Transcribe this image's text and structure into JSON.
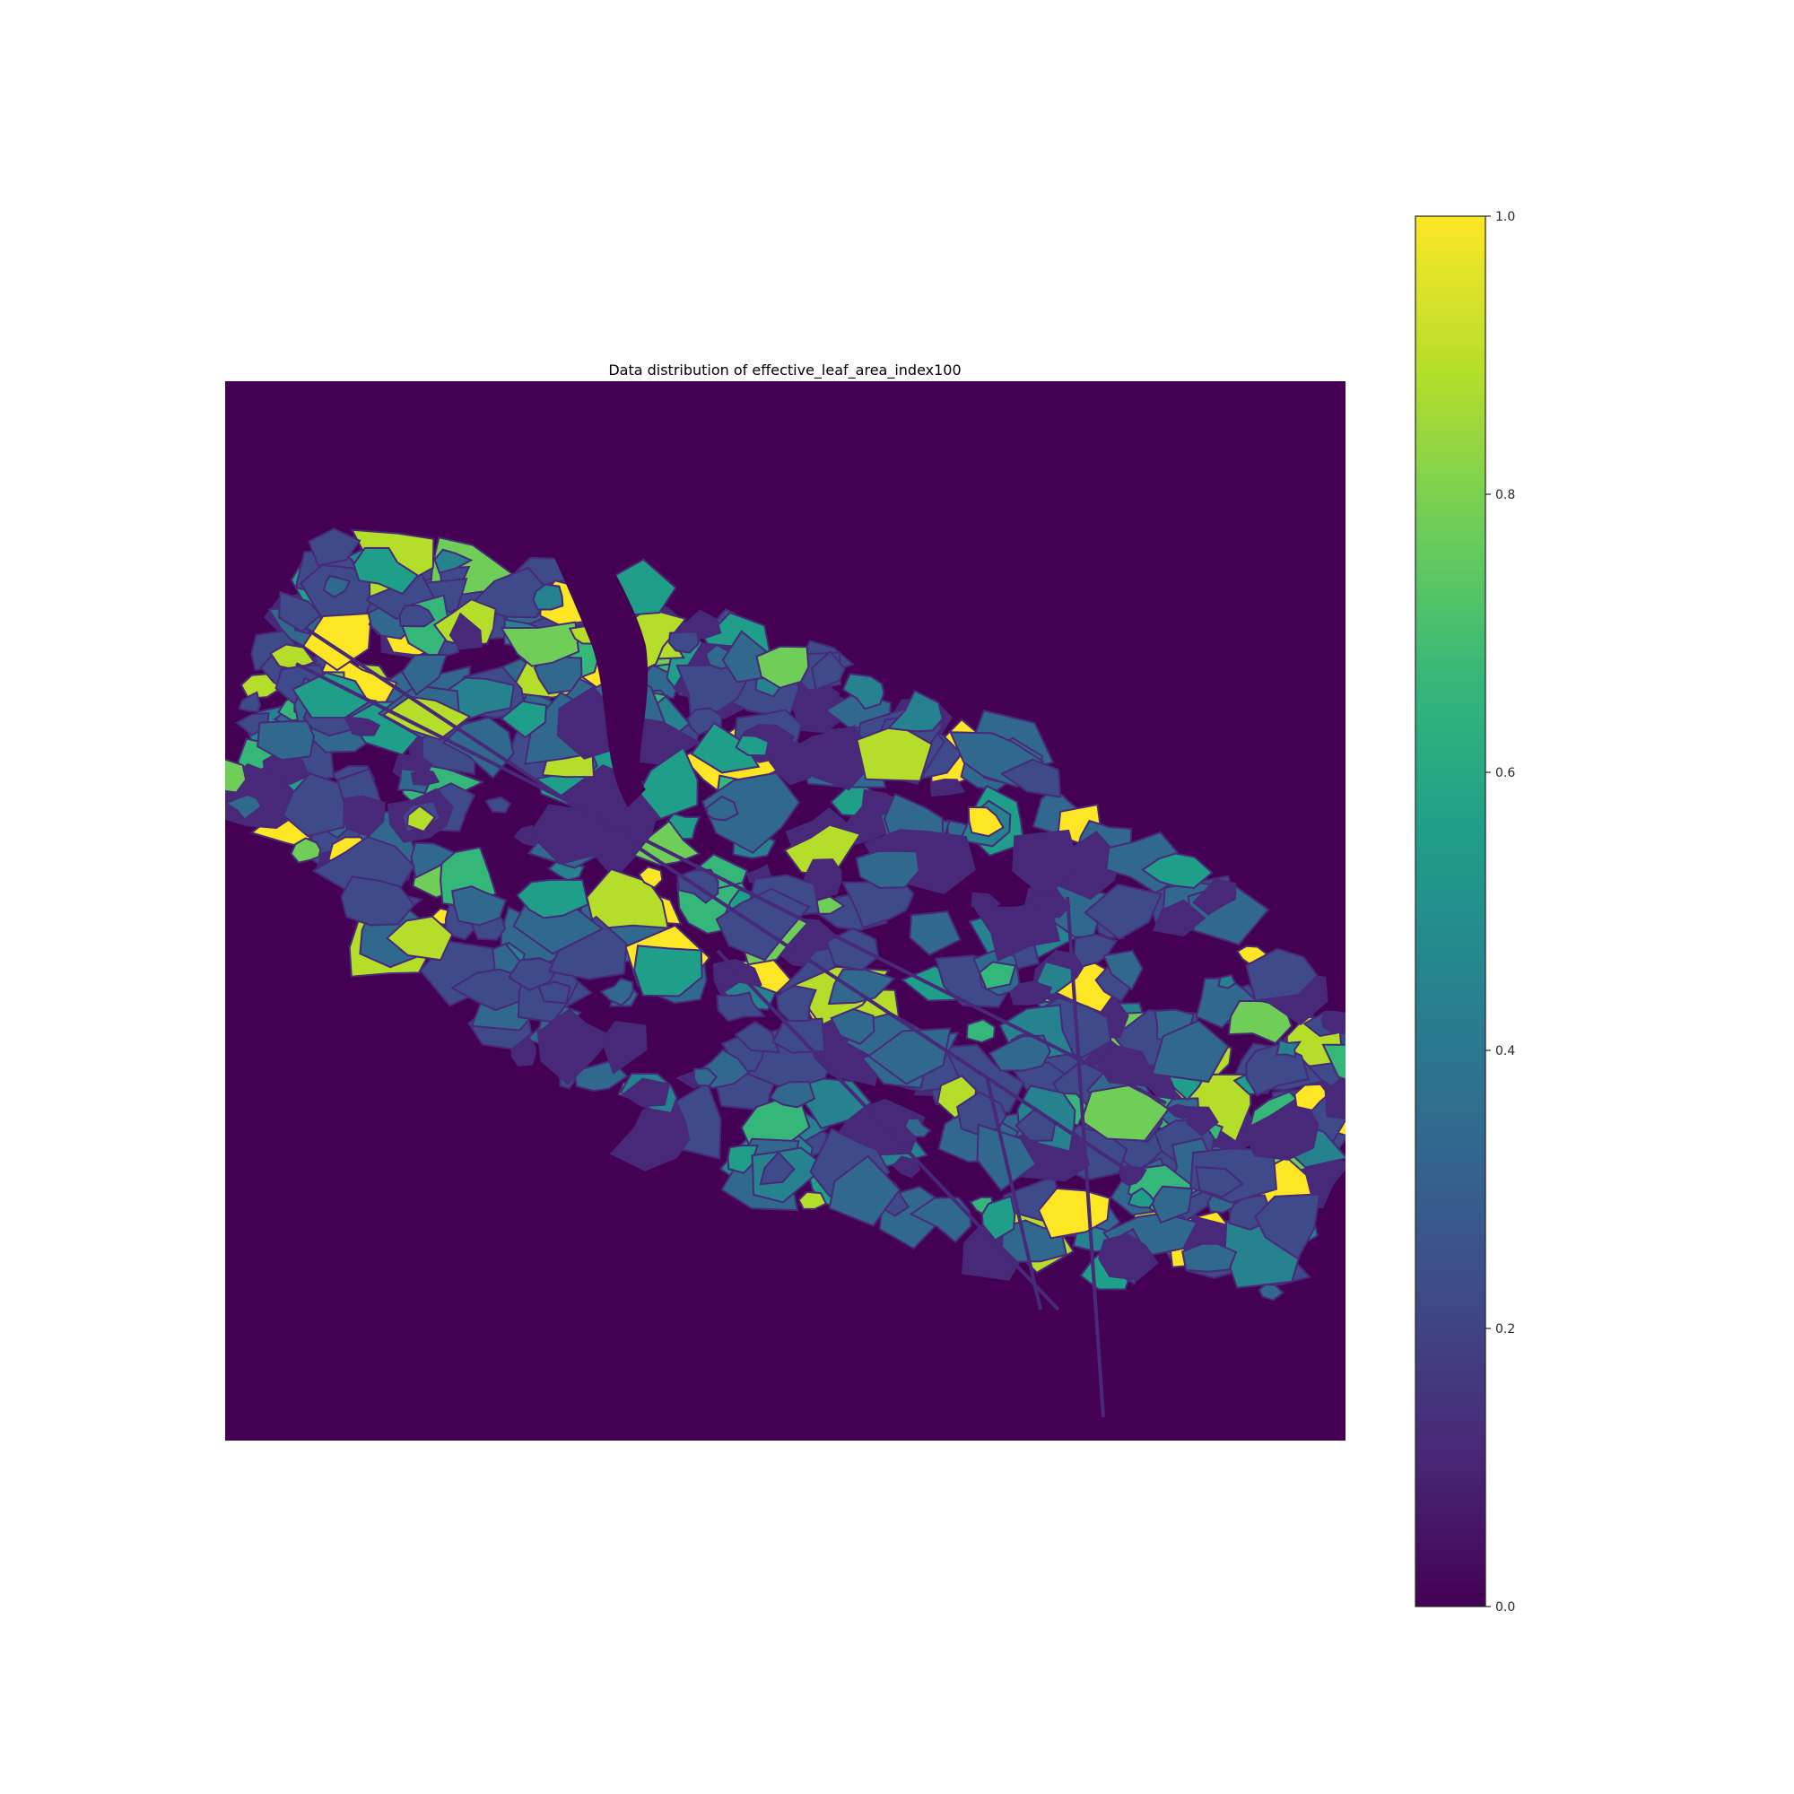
{
  "chart_data": {
    "type": "heatmap",
    "title": "Data distribution of effective_leaf_area_index100",
    "xlabel": "",
    "ylabel": "",
    "axes_visible": false,
    "grid": false,
    "colormap": "viridis",
    "background_color": "#440154",
    "value_range": [
      0.0,
      1.0
    ],
    "colorbar": {
      "position": "right",
      "ticks": [
        0.0,
        0.2,
        0.4,
        0.6,
        0.8,
        1.0
      ],
      "tick_labels": [
        "0.0",
        "0.2",
        "0.4",
        "0.6",
        "0.8",
        "1.0"
      ]
    },
    "colormap_stops": [
      "#440154",
      "#482878",
      "#3e4a89",
      "#31688e",
      "#26828e",
      "#1f9e89",
      "#35b779",
      "#6ece58",
      "#b5de2b",
      "#fde725"
    ]
  }
}
